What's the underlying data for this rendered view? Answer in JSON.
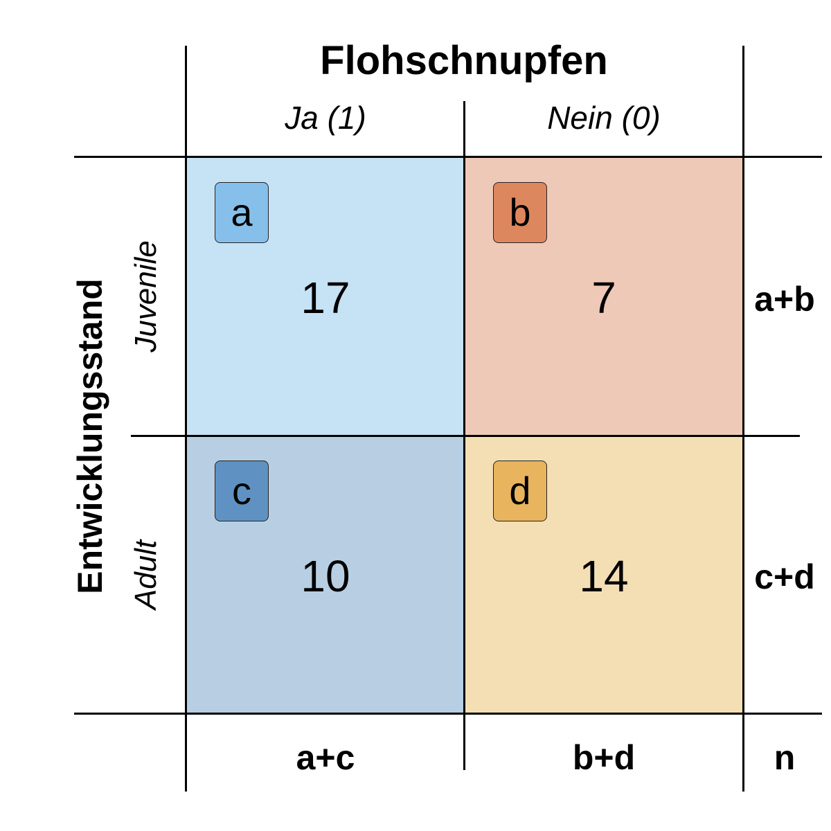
{
  "title": "Flohschnupfen",
  "row_variable": "Entwicklungsstand",
  "columns": [
    {
      "label": "Ja (1)"
    },
    {
      "label": "Nein (0)"
    }
  ],
  "rows": [
    {
      "label": "Juvenile"
    },
    {
      "label": "Adult"
    }
  ],
  "cells": [
    {
      "letter": "a",
      "value": "17",
      "cell_color": "#c6e2f5",
      "badge_color": "#86c0ea"
    },
    {
      "letter": "b",
      "value": "7",
      "cell_color": "#efc9b7",
      "badge_color": "#dd875f"
    },
    {
      "letter": "c",
      "value": "10",
      "cell_color": "#b8cfe3",
      "badge_color": "#5f92c2"
    },
    {
      "letter": "d",
      "value": "14",
      "cell_color": "#f4deb4",
      "badge_color": "#e8b45e"
    }
  ],
  "row_totals": [
    "a+b",
    "c+d"
  ],
  "col_totals": [
    "a+c",
    "b+d"
  ],
  "grand_total": "n"
}
